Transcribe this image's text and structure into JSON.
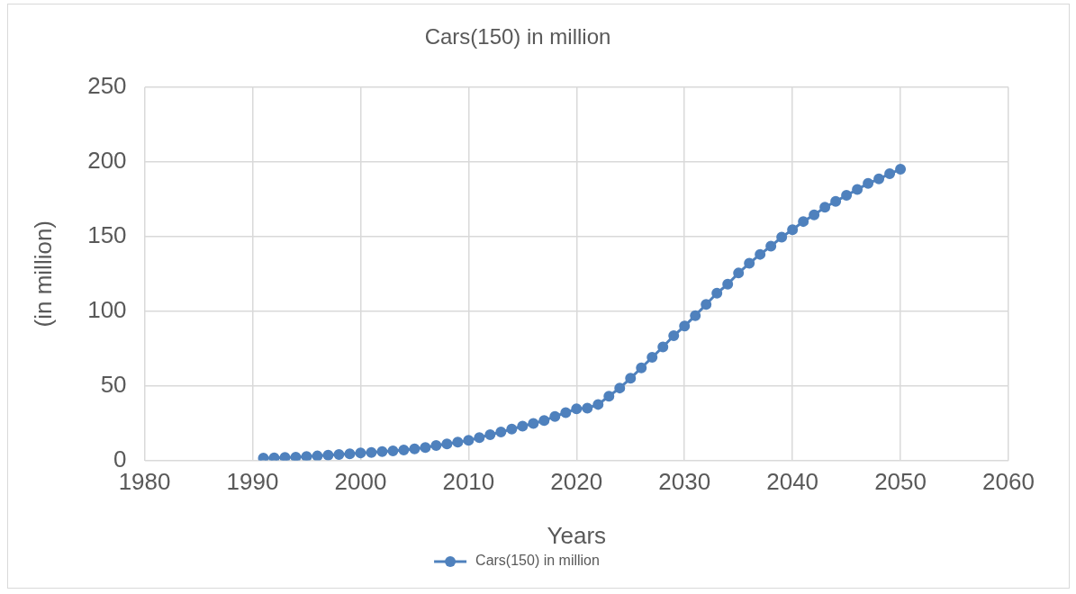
{
  "chart_data": {
    "type": "line",
    "title": "Cars(150) in million",
    "xlabel": "Years",
    "ylabel": "(in million)",
    "x": [
      1991,
      1992,
      1993,
      1994,
      1995,
      1996,
      1997,
      1998,
      1999,
      2000,
      2001,
      2002,
      2003,
      2004,
      2005,
      2006,
      2007,
      2008,
      2009,
      2010,
      2011,
      2012,
      2013,
      2014,
      2015,
      2016,
      2017,
      2018,
      2019,
      2020,
      2021,
      2022,
      2023,
      2024,
      2025,
      2026,
      2027,
      2028,
      2029,
      2030,
      2031,
      2032,
      2033,
      2034,
      2035,
      2036,
      2037,
      2038,
      2039,
      2040,
      2041,
      2042,
      2043,
      2044,
      2045,
      2046,
      2047,
      2048,
      2049,
      2050
    ],
    "series": [
      {
        "name": "Cars(150) in million",
        "color": "#4f81bd",
        "values": [
          1.5,
          1.7,
          2,
          2.2,
          2.6,
          3,
          3.5,
          4,
          4.5,
          5,
          5.4,
          6,
          6.4,
          7,
          7.8,
          8.7,
          10,
          11,
          12.3,
          13.4,
          15.3,
          17.2,
          19,
          21,
          23,
          24.8,
          26.7,
          29.5,
          32,
          34.5,
          35,
          37.5,
          43,
          48.5,
          55,
          62,
          69,
          76,
          83.5,
          90,
          97,
          104.5,
          112,
          118,
          125.5,
          132,
          138,
          143.5,
          149.5,
          154.5,
          160,
          164.5,
          169.5,
          173.5,
          177.5,
          181.5,
          185.5,
          188.5,
          192,
          195
        ]
      }
    ],
    "xlim": [
      1980,
      2060
    ],
    "xticks": [
      1980,
      1990,
      2000,
      2010,
      2020,
      2030,
      2040,
      2050,
      2060
    ],
    "ylim": [
      0,
      250
    ],
    "yticks": [
      0,
      50,
      100,
      150,
      200,
      250
    ],
    "grid": true,
    "legend": "bottom",
    "marker": "circle",
    "line_style": "solid"
  }
}
